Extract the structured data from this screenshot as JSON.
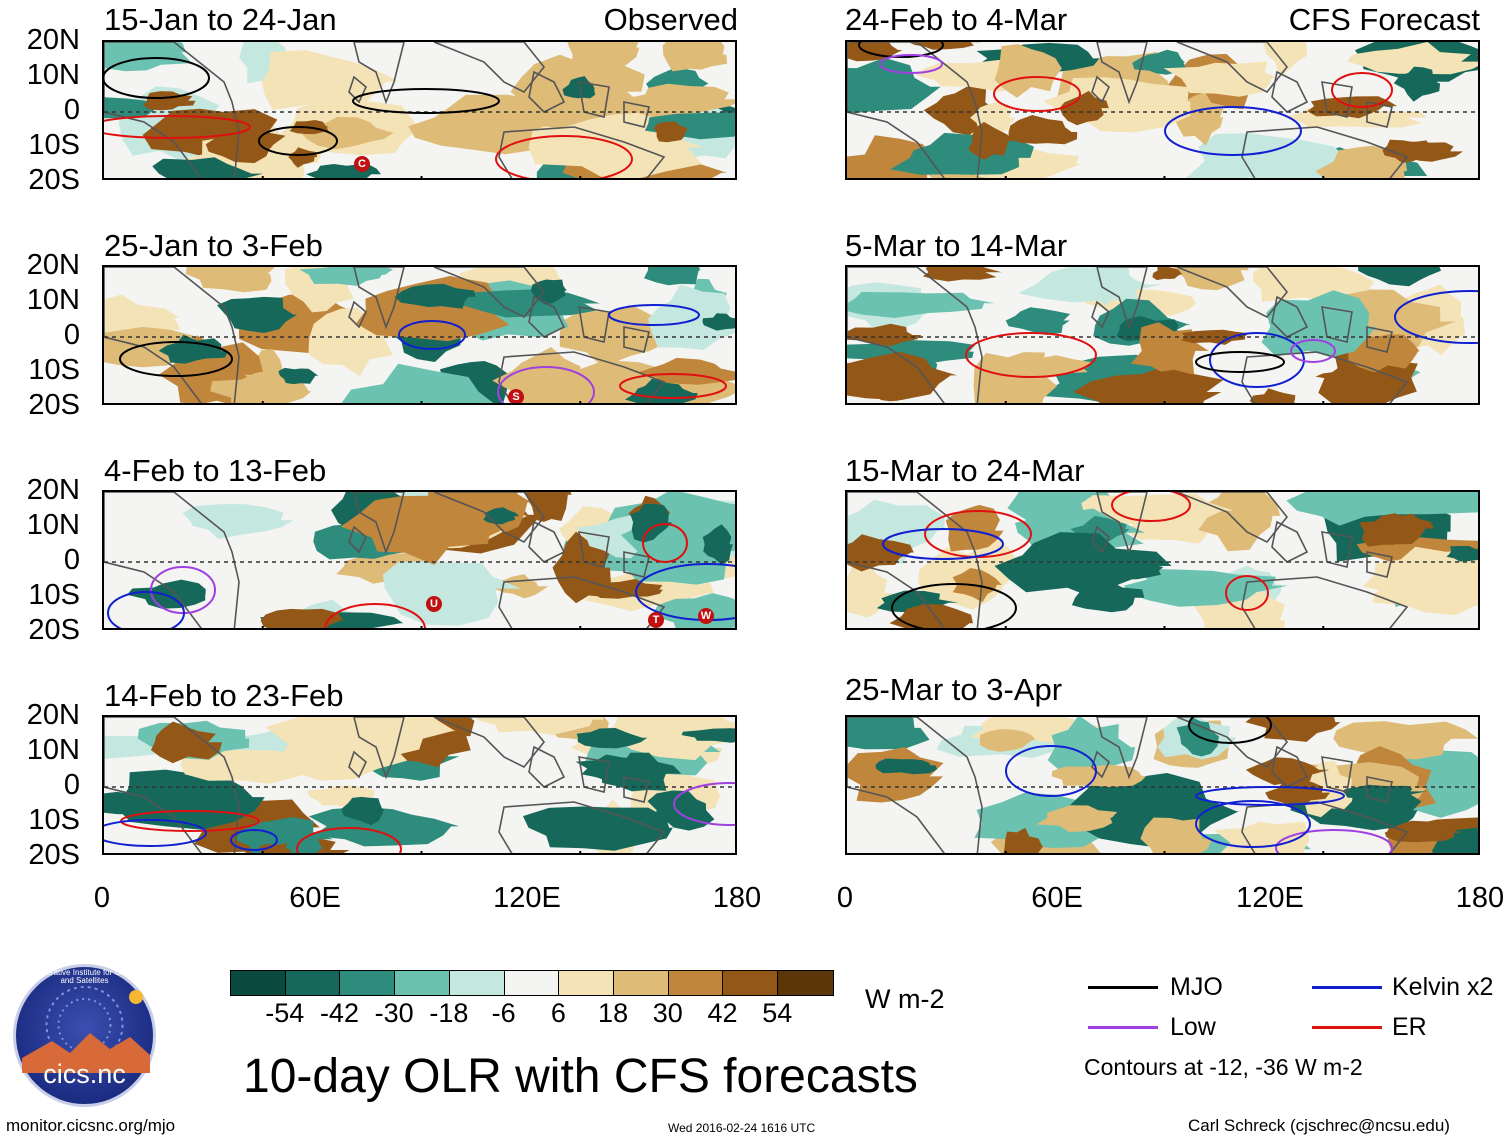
{
  "main_title": "10-day OLR with CFS forecasts",
  "left_column_label": "Observed",
  "right_column_label": "CFS Forecast",
  "panels_left": [
    {
      "period": "15-Jan to 24-Jan"
    },
    {
      "period": "25-Jan to 3-Feb"
    },
    {
      "period": "4-Feb to 13-Feb"
    },
    {
      "period": "14-Feb to 23-Feb"
    }
  ],
  "panels_right": [
    {
      "period": "24-Feb to 4-Mar"
    },
    {
      "period": "5-Mar to 14-Mar"
    },
    {
      "period": "15-Mar to 24-Mar"
    },
    {
      "period": "25-Mar to 3-Apr"
    }
  ],
  "lat_labels": [
    "20N",
    "10N",
    "0",
    "10S",
    "20S"
  ],
  "lon_labels": [
    "0",
    "60E",
    "120E",
    "180"
  ],
  "colorbar": {
    "units": "W m-2",
    "ticks": [
      "-54",
      "-42",
      "-30",
      "-18",
      "-6",
      "6",
      "18",
      "30",
      "42",
      "54"
    ],
    "colors": [
      "#0b4a3e",
      "#16695a",
      "#2e8c7c",
      "#6cc2b1",
      "#c4e8e0",
      "#f4f4f2",
      "#f5e3b8",
      "#dfbb78",
      "#c0863c",
      "#935818",
      "#5a3608"
    ]
  },
  "legend": {
    "items": [
      {
        "label": "MJO",
        "color": "#000000"
      },
      {
        "label": "Kelvin x2",
        "color": "#1020d0"
      },
      {
        "label": "Low",
        "color": "#a040e0"
      },
      {
        "label": "ER",
        "color": "#e01010"
      }
    ],
    "note": "Contours at -12, -36 W m-2"
  },
  "logo_text": "cics.nc",
  "logo_ring_text": "Cooperative Institute for Climate and Satellites",
  "footer": {
    "url": "monitor.cicsnc.org/mjo",
    "timestamp": "Wed 2016-02-24 1616 UTC",
    "author": "Carl Schreck (cjschrec@ncsu.edu)"
  },
  "storm_markers": [
    {
      "panel": "left-0",
      "letter": "C"
    },
    {
      "panel": "left-1",
      "letter": "S"
    },
    {
      "panel": "left-2",
      "letter": "U"
    },
    {
      "panel": "left-2",
      "letter": "T"
    },
    {
      "panel": "left-2",
      "letter": "W"
    }
  ]
}
